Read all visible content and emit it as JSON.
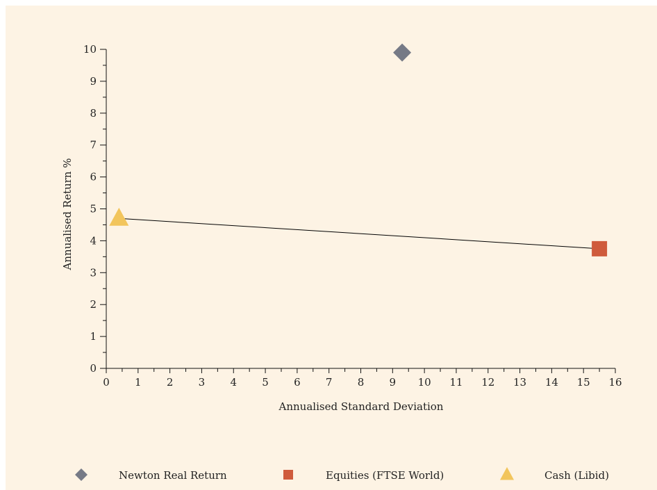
{
  "chart_data": {
    "type": "scatter",
    "title": "",
    "xlabel": "Annualised Standard Deviation",
    "ylabel": "Annualised Return %",
    "xlim": [
      0,
      16
    ],
    "ylim": [
      0,
      10
    ],
    "xticks": [
      "0",
      "1",
      "2",
      "3",
      "4",
      "5",
      "6",
      "7",
      "8",
      "9",
      "10",
      "11",
      "12",
      "13",
      "14",
      "15",
      "16"
    ],
    "yticks": [
      "0",
      "1",
      "2",
      "3",
      "4",
      "5",
      "6",
      "7",
      "8",
      "9",
      "10"
    ],
    "grid": false,
    "legend_position": "bottom",
    "series": [
      {
        "name": "Newton Real Return",
        "marker": "diamond",
        "color": "#767a86",
        "x": 9.3,
        "y": 9.9
      },
      {
        "name": "Equities (FTSE World)",
        "marker": "square",
        "color": "#cf5b3c",
        "x": 15.5,
        "y": 3.75
      },
      {
        "name": "Cash (Libid)",
        "marker": "triangle",
        "color": "#f2c55c",
        "x": 0.4,
        "y": 4.7
      }
    ],
    "line": {
      "color": "#000000",
      "from": [
        0.4,
        4.7
      ],
      "to": [
        15.5,
        3.75
      ]
    }
  }
}
